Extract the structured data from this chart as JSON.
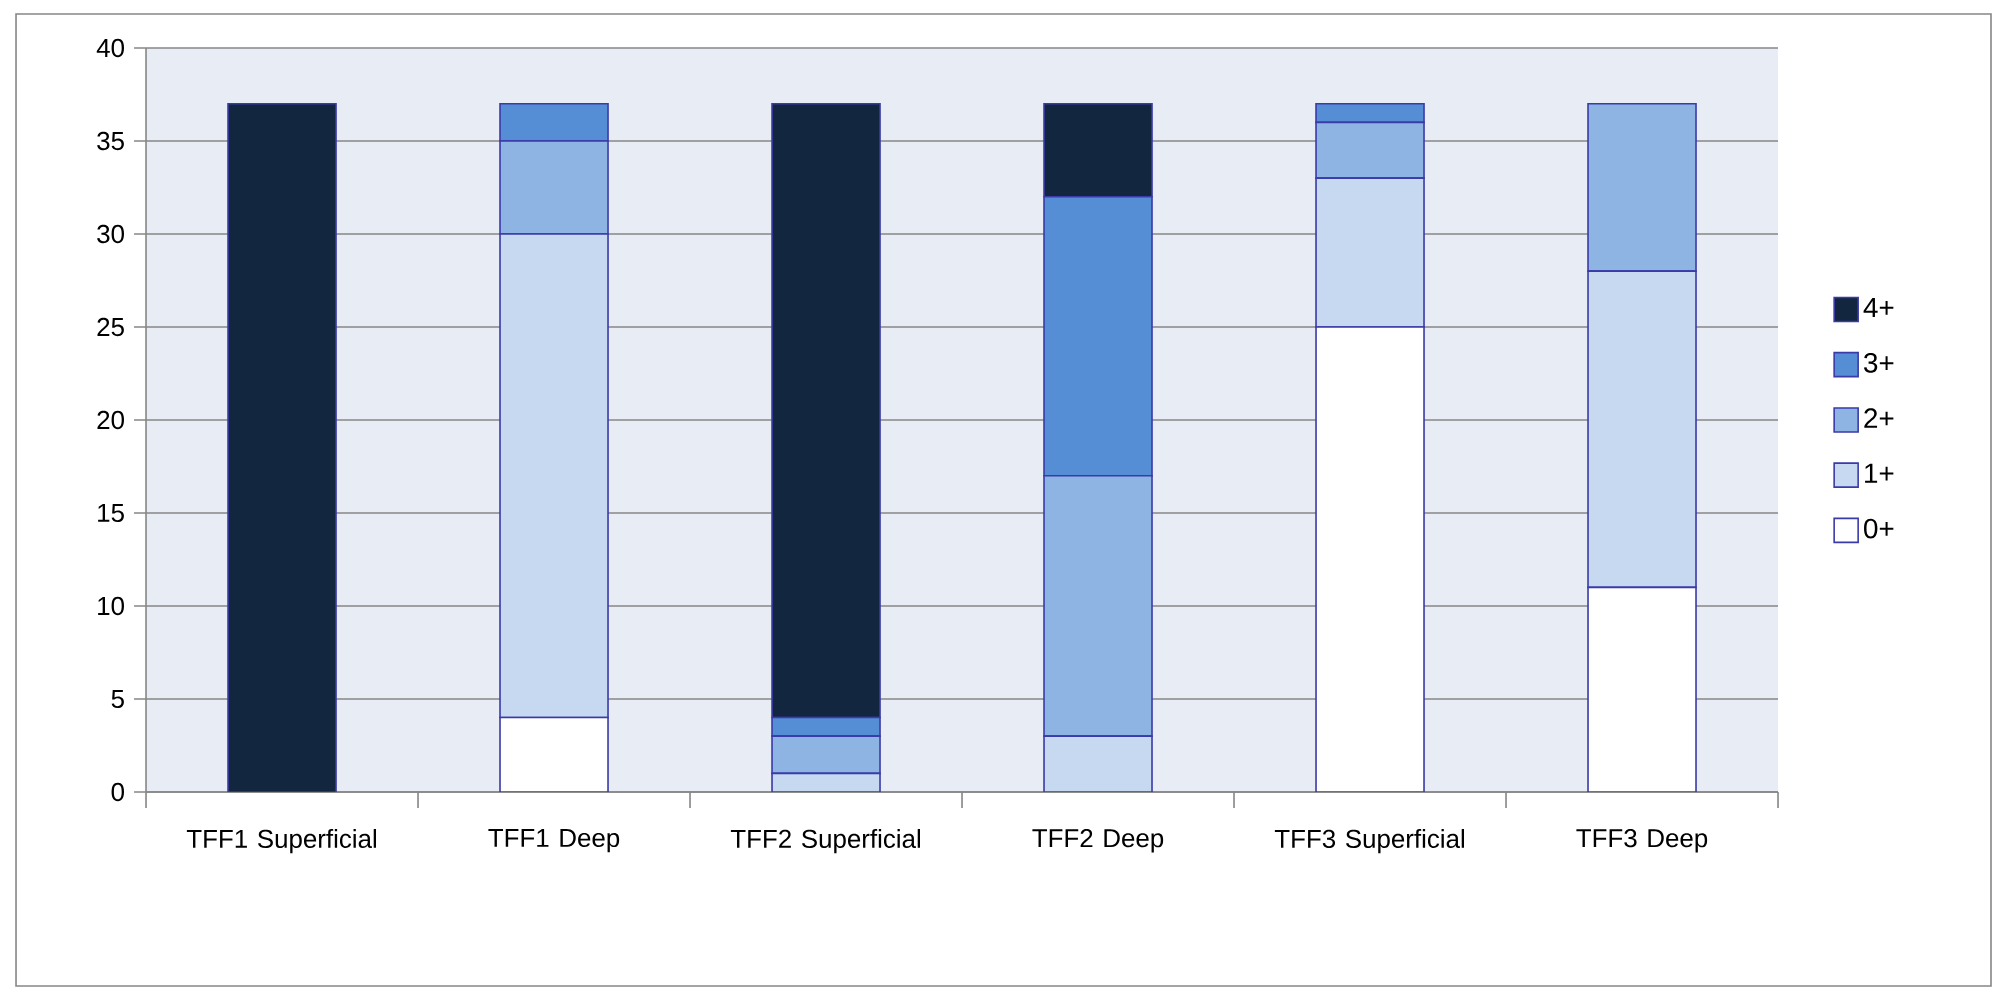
{
  "chart_data": {
    "type": "bar",
    "stacked": true,
    "categories": [
      "TFF1 Superficial",
      "TFF1 Deep",
      "TFF2 Superficial",
      "TFF2 Deep",
      "TFF3 Superficial",
      "TFF3 Deep"
    ],
    "series": [
      {
        "name": "0+",
        "color": "#ffffff",
        "values": [
          0,
          4,
          0,
          0,
          25,
          11
        ]
      },
      {
        "name": "1+",
        "color": "#c6d9f1",
        "values": [
          0,
          26,
          1,
          3,
          8,
          17
        ]
      },
      {
        "name": "2+",
        "color": "#8eb4e3",
        "values": [
          0,
          5,
          2,
          14,
          3,
          9
        ]
      },
      {
        "name": "3+",
        "color": "#558ed5",
        "values": [
          0,
          2,
          1,
          15,
          1,
          0
        ]
      },
      {
        "name": "4+",
        "color": "#132640",
        "values": [
          37,
          0,
          33,
          5,
          0,
          0
        ]
      }
    ],
    "ylim": [
      0,
      40
    ],
    "yticks": [
      0,
      5,
      10,
      15,
      20,
      25,
      30,
      35,
      40
    ],
    "grid": "y",
    "legend": "right"
  }
}
